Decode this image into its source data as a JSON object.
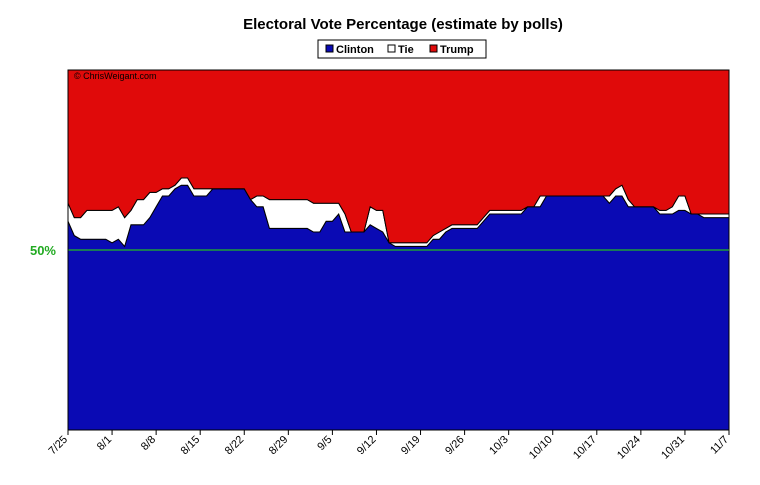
{
  "chart_data": {
    "type": "stacked_area",
    "title": "Electoral Vote Percentage (estimate by polls)",
    "annotation": "© ChrisWeigant.com",
    "categories": [
      "7/25",
      null,
      null,
      null,
      null,
      null,
      null,
      "8/1",
      null,
      null,
      null,
      null,
      null,
      null,
      "8/8",
      null,
      null,
      null,
      null,
      null,
      null,
      "8/15",
      null,
      null,
      null,
      null,
      null,
      null,
      "8/22",
      null,
      null,
      null,
      null,
      null,
      null,
      "8/29",
      null,
      null,
      null,
      null,
      null,
      null,
      "9/5",
      null,
      null,
      null,
      null,
      null,
      null,
      "9/12",
      null,
      null,
      null,
      null,
      null,
      null,
      "9/19",
      null,
      null,
      null,
      null,
      null,
      null,
      "9/26",
      null,
      null,
      null,
      null,
      null,
      null,
      "10/3",
      null,
      null,
      null,
      null,
      null,
      null,
      "10/10",
      null,
      null,
      null,
      null,
      null,
      null,
      "10/17",
      null,
      null,
      null,
      null,
      null,
      null,
      "10/24",
      null,
      null,
      null,
      null,
      null,
      null,
      "10/31",
      null,
      null,
      null,
      null,
      null,
      null,
      "11/7"
    ],
    "series": [
      {
        "name": "Clinton",
        "color": "#0a0ab4",
        "values": [
          58,
          54,
          53,
          53,
          53,
          53,
          53,
          52,
          53,
          51,
          57,
          57,
          57,
          59,
          62,
          65,
          65,
          67,
          68,
          68,
          65,
          65,
          65,
          67,
          67,
          67,
          67,
          67,
          67,
          64,
          62,
          62,
          56,
          56,
          56,
          56,
          56,
          56,
          56,
          55,
          55,
          58,
          58,
          60,
          55,
          55,
          55,
          55,
          57,
          56,
          55,
          52,
          51,
          51,
          51,
          51,
          51,
          51,
          53,
          53,
          55,
          56,
          56,
          56,
          56,
          56,
          58,
          60,
          60,
          60,
          60,
          60,
          60,
          62,
          62,
          62,
          65,
          65,
          65,
          65,
          65,
          65,
          65,
          65,
          65,
          65,
          63,
          65,
          65,
          62,
          62,
          62,
          62,
          62,
          60,
          60,
          60,
          61,
          61,
          60,
          60,
          59,
          59,
          59,
          59,
          59
        ]
      },
      {
        "name": "Tie",
        "color": "#ffffff",
        "values": [
          5,
          5,
          6,
          8,
          8,
          8,
          8,
          9,
          9,
          8,
          4,
          7,
          7,
          7,
          4,
          2,
          2,
          1,
          2,
          2,
          2,
          2,
          2,
          0,
          0,
          0,
          0,
          0,
          0,
          0,
          3,
          3,
          8,
          8,
          8,
          8,
          8,
          8,
          8,
          8,
          8,
          5,
          5,
          3,
          5,
          0,
          0,
          0,
          5,
          5,
          6,
          0,
          1,
          1,
          1,
          1,
          1,
          1,
          1,
          2,
          1,
          1,
          1,
          1,
          1,
          1,
          1,
          1,
          1,
          1,
          1,
          1,
          1,
          0,
          0,
          3,
          0,
          0,
          0,
          0,
          0,
          0,
          0,
          0,
          0,
          0,
          2,
          2,
          3,
          2,
          0,
          0,
          0,
          0,
          1,
          1,
          2,
          4,
          4,
          0,
          0,
          1,
          1,
          1,
          1,
          1
        ]
      },
      {
        "name": "Trump",
        "color": "#e00a0a",
        "values": [
          37,
          41,
          41,
          39,
          39,
          39,
          39,
          39,
          38,
          41,
          39,
          36,
          36,
          34,
          34,
          33,
          33,
          32,
          30,
          30,
          33,
          33,
          33,
          33,
          33,
          33,
          33,
          33,
          33,
          36,
          35,
          35,
          36,
          36,
          36,
          36,
          36,
          36,
          36,
          37,
          37,
          37,
          37,
          37,
          40,
          45,
          45,
          45,
          38,
          39,
          39,
          48,
          48,
          48,
          48,
          48,
          48,
          48,
          46,
          45,
          44,
          43,
          43,
          43,
          43,
          43,
          41,
          39,
          39,
          39,
          39,
          39,
          39,
          38,
          38,
          35,
          35,
          35,
          35,
          35,
          35,
          35,
          35,
          35,
          35,
          35,
          35,
          33,
          32,
          36,
          38,
          38,
          38,
          38,
          39,
          39,
          38,
          35,
          35,
          40,
          40,
          40,
          40,
          40,
          40,
          40
        ]
      }
    ],
    "ylim": [
      0,
      100
    ],
    "yticks": [
      {
        "value": 50,
        "label": "50%"
      }
    ],
    "legend": "top"
  }
}
